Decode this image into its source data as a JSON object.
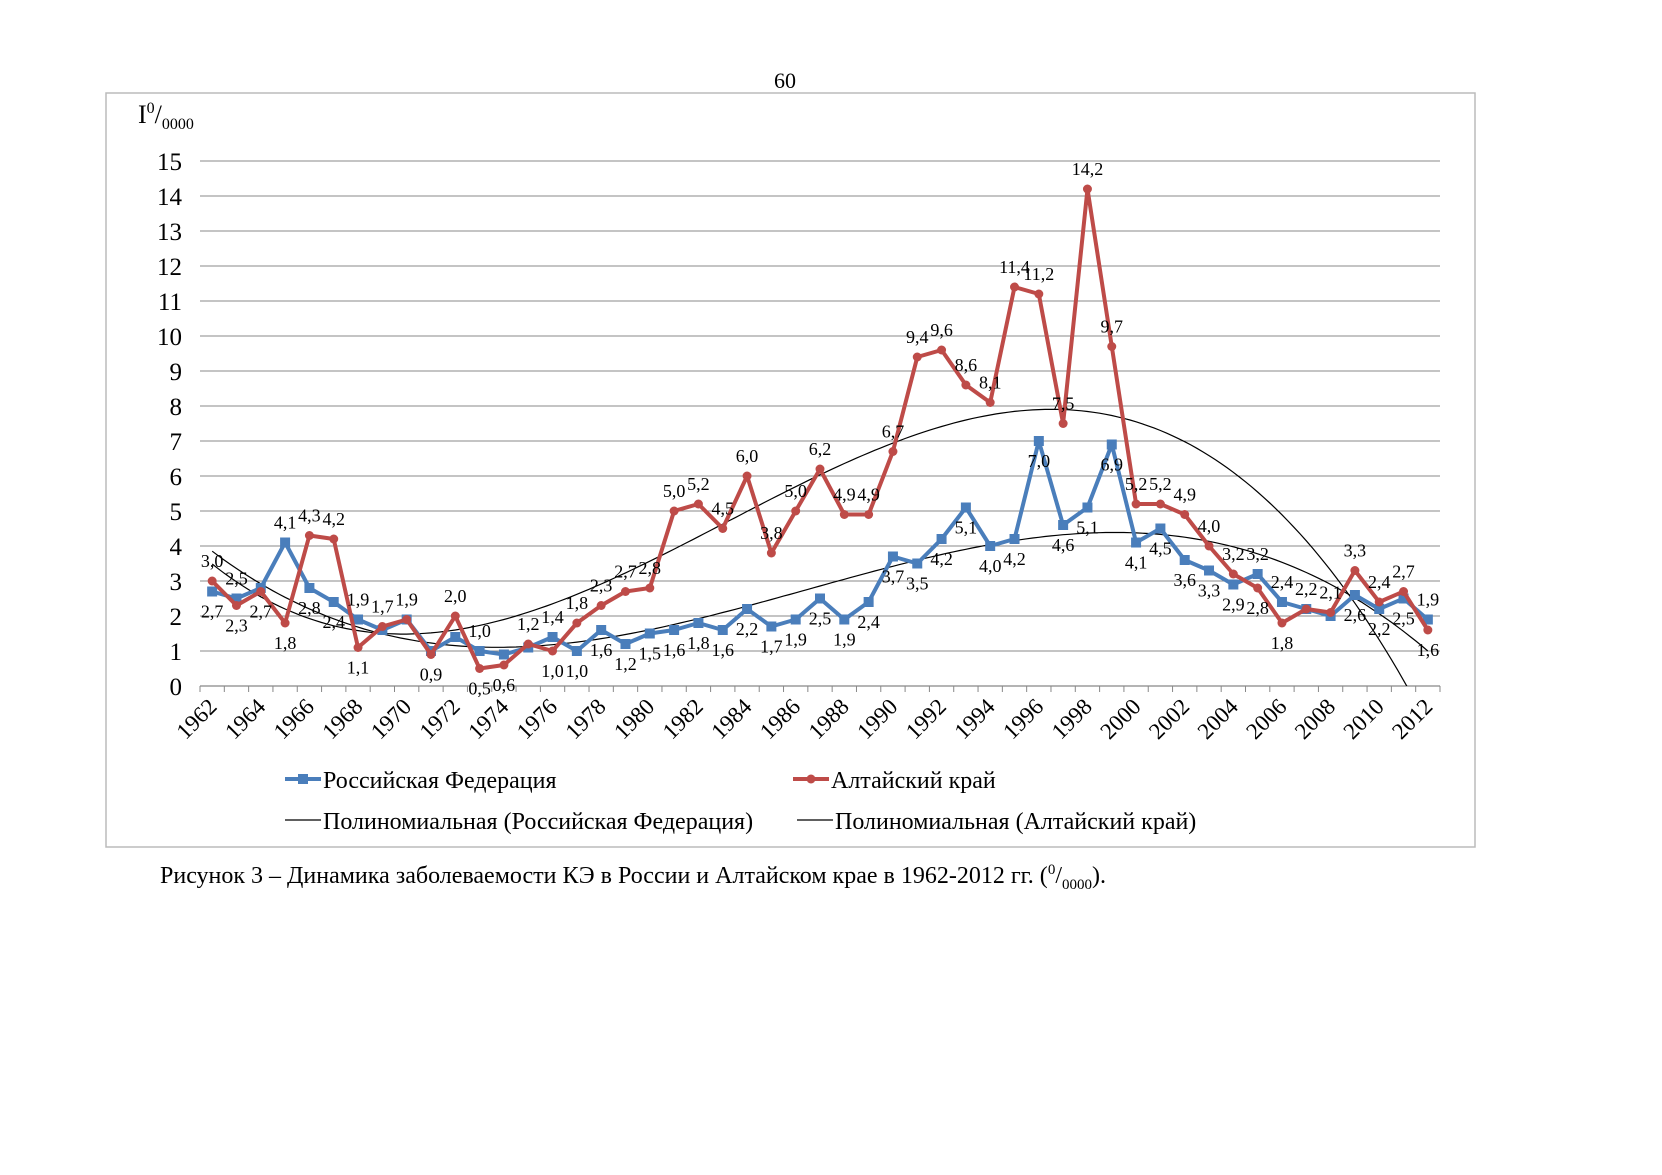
{
  "page_number": "60",
  "caption": {
    "text": "Рисунок 3 – Динамика заболеваемости КЭ в России и Алтайском крае в 1962-2012 гг. (",
    "sup": "0",
    "sep": "/",
    "sub": "0000",
    "end": ")."
  },
  "chart_data": {
    "type": "line",
    "ylabel": {
      "main": "I",
      "sup": "0",
      "sep": "/",
      "sub": "0000"
    },
    "categories": [
      "1962",
      null,
      "1964",
      null,
      "1966",
      null,
      "1968",
      null,
      "1970",
      null,
      "1972",
      null,
      "1974",
      null,
      "1976",
      null,
      "1978",
      null,
      "1980",
      null,
      "1982",
      null,
      "1984",
      null,
      "1986",
      null,
      "1988",
      null,
      "1990",
      null,
      "1992",
      null,
      "1994",
      null,
      "1996",
      null,
      "1998",
      null,
      "2000",
      null,
      "2002",
      null,
      "2004",
      null,
      "2006",
      null,
      "2008",
      null,
      "2010",
      null,
      "2012"
    ],
    "ylim": [
      0,
      15
    ],
    "yticks": [
      0,
      1,
      2,
      3,
      4,
      5,
      6,
      7,
      8,
      9,
      10,
      11,
      12,
      13,
      14,
      15
    ],
    "grid": true,
    "series": [
      {
        "name": "Российская Федерация",
        "color": "#4a7ebb",
        "marker": "square",
        "values": [
          2.7,
          2.5,
          2.8,
          4.1,
          2.8,
          2.4,
          1.9,
          1.6,
          1.9,
          1.0,
          1.4,
          1.0,
          0.9,
          1.1,
          1.4,
          1.0,
          1.6,
          1.2,
          1.5,
          1.6,
          1.8,
          1.6,
          2.2,
          1.7,
          1.9,
          2.5,
          1.9,
          2.4,
          3.7,
          3.5,
          4.2,
          5.1,
          4.0,
          4.2,
          7.0,
          4.6,
          5.1,
          6.9,
          4.1,
          4.5,
          3.6,
          3.3,
          2.9,
          3.2,
          2.4,
          2.2,
          2.0,
          2.6,
          2.2,
          2.5,
          1.9
        ],
        "value_labels": [
          "2,7",
          "2,5",
          null,
          "4,1",
          "2,8",
          "2,4",
          "1,9",
          null,
          null,
          null,
          null,
          "1,0",
          null,
          null,
          "1,4",
          "1,0",
          "1,6",
          "1,2",
          "1,5",
          "1,6",
          "1,8",
          "1,6",
          "2,2",
          "1,7",
          "1,9",
          "2,5",
          "1,9",
          "2,4",
          "3,7",
          "3,5",
          "4,2",
          "5,1",
          "4,0",
          "4,2",
          "7,0",
          "4,6",
          "5,1",
          "6,9",
          "4,1",
          "4,5",
          "3,6",
          "3,3",
          "2,9",
          "3,2",
          "2,4",
          "2,2",
          null,
          "2,6",
          "2,2",
          "2,5",
          "1,9"
        ]
      },
      {
        "name": "Алтайский край",
        "color": "#be4b48",
        "marker": "circle",
        "values": [
          3.0,
          2.3,
          2.7,
          1.8,
          4.3,
          4.2,
          1.1,
          1.7,
          1.9,
          0.9,
          2.0,
          0.5,
          0.6,
          1.2,
          1.0,
          1.8,
          2.3,
          2.7,
          2.8,
          5.0,
          5.2,
          4.5,
          6.0,
          3.8,
          5.0,
          6.2,
          4.9,
          4.9,
          6.7,
          9.4,
          9.6,
          8.6,
          8.1,
          11.4,
          11.2,
          7.5,
          14.2,
          9.7,
          5.2,
          5.2,
          4.9,
          4.0,
          3.2,
          2.8,
          1.8,
          2.2,
          2.1,
          3.3,
          2.4,
          2.7,
          1.6
        ],
        "value_labels": [
          "3,0",
          "2,3",
          "2,7",
          "1,8",
          "4,3",
          "4,2",
          "1,1",
          "1,7",
          "1,9",
          "0,9",
          "2,0",
          "0,5",
          "0,6",
          "1,2",
          "1,0",
          "1,8",
          "2,3",
          "2,7",
          "2,8",
          "5,0",
          "5,2",
          "4,5",
          "6,0",
          "3,8",
          "5,0",
          "6,2",
          "4,9",
          "4,9",
          "6,7",
          "9,4",
          "9,6",
          "8,6",
          "8,1",
          "11,4",
          "11,2",
          "7,5",
          "14,2",
          "9,7",
          "5,2",
          "5,2",
          "4,9",
          "4,0",
          "3,2",
          "2,8",
          "1,8",
          null,
          "2,1",
          "3,3",
          "2,4",
          "2,7",
          "1,6"
        ]
      }
    ],
    "trendlines": [
      {
        "name": "Полиномиальная (Российская Федерация)",
        "color": "#000000",
        "series": 0
      },
      {
        "name": "Полиномиальная (Алтайский край)",
        "color": "#000000",
        "series": 1
      }
    ]
  }
}
